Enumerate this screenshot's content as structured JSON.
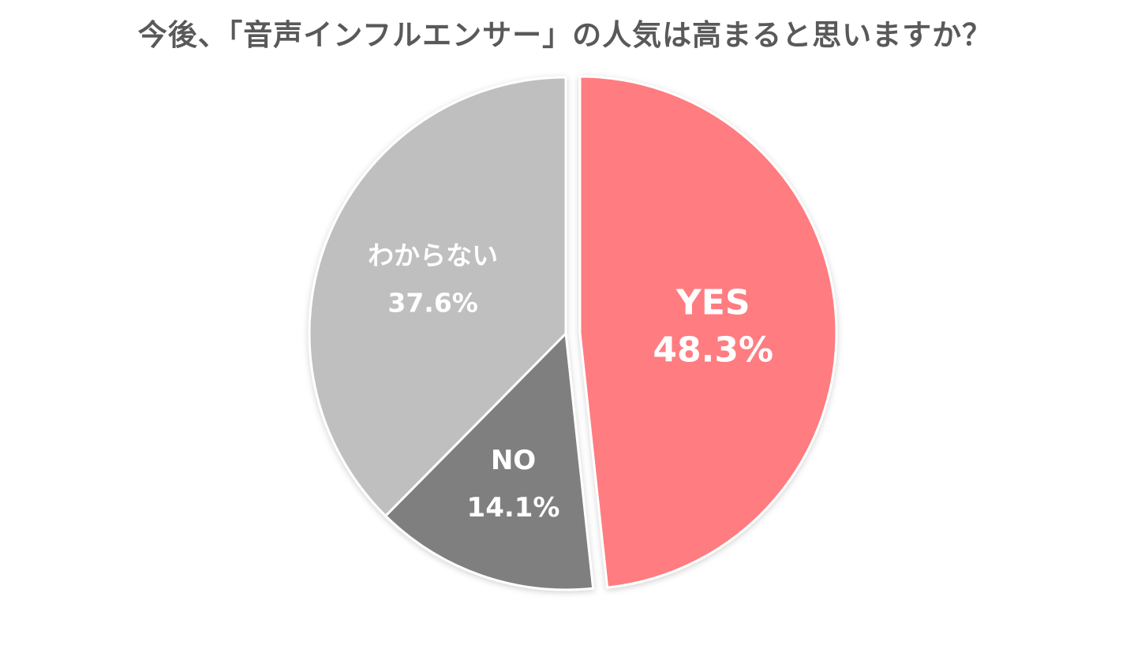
{
  "chart_data": {
    "type": "pie",
    "title": "今後、「音声インフルエンサー」の人気は高まると思いますか？",
    "slices": [
      {
        "name": "YES",
        "value": 48.3,
        "value_label": "48.3%",
        "color": "#ff7c80",
        "exploded": true
      },
      {
        "name": "NO",
        "value": 14.1,
        "value_label": "14.1%",
        "color": "#7f7f7f",
        "exploded": false
      },
      {
        "name": "わからない",
        "value": 37.6,
        "value_label": "37.6%",
        "color": "#bfbfbf",
        "exploded": false
      }
    ],
    "start_angle_deg": 0,
    "direction": "clockwise",
    "legend": "none"
  }
}
